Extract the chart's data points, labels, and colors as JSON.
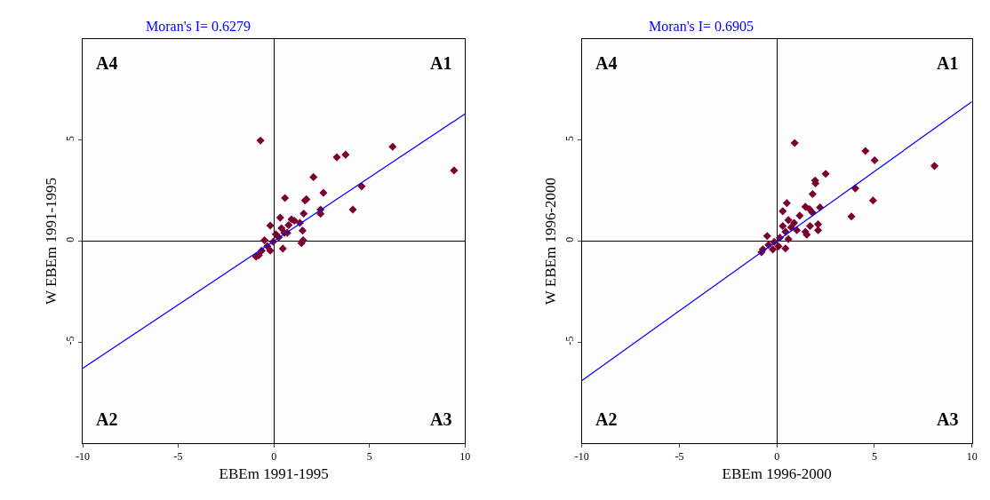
{
  "chart_data": [
    {
      "type": "scatter",
      "title": "Moran's I= 0.6279",
      "xlabel": "EBEm 1991-1995",
      "ylabel": "W EBEm 1991-1995",
      "annotations": [
        "A4",
        "A1",
        "A2",
        "A3"
      ],
      "xlim": [
        -10,
        10
      ],
      "ylim": [
        -10,
        10
      ],
      "xticks": [
        -10,
        -5,
        0,
        5,
        10
      ],
      "yticks": [
        -5,
        0,
        5
      ],
      "marker": "diamond",
      "series": [
        {
          "color": "#7b0033",
          "x": [
            -0.7,
            6.21,
            9.42,
            3.29,
            3.75,
            2.07,
            2.59,
            4.59,
            4.13,
            0.58,
            1.63,
            1.7,
            1.56,
            2.44,
            2.44,
            0.33,
            -0.19,
            1.5,
            1.44,
            1.53,
            0.92,
            1.07,
            1.36,
            0.7,
            -0.93,
            -0.64,
            -0.34,
            -0.04,
            0.25,
            0.55,
            0.47,
            -0.49,
            0.1,
            0.4,
            0.77,
            -0.19,
            -0.79
          ],
          "values": [
            4.98,
            4.67,
            3.5,
            4.15,
            4.28,
            3.17,
            2.39,
            2.71,
            1.56,
            2.13,
            2.01,
            2.07,
            1.36,
            1.56,
            1.35,
            1.16,
            0.77,
            0.52,
            -0.1,
            0.04,
            1.08,
            1.01,
            0.9,
            0.41,
            -0.77,
            -0.47,
            -0.25,
            -0.03,
            0.19,
            0.41,
            -0.37,
            0.04,
            0.34,
            0.64,
            0.79,
            -0.47,
            -0.7
          ]
        },
        {
          "type": "line",
          "color": "#0000ff",
          "marker": "none",
          "x": [
            -10,
            10
          ],
          "values": [
            -6.3,
            6.3
          ]
        }
      ]
    },
    {
      "type": "scatter",
      "title": "Moran's I= 0.6905",
      "xlabel": "EBEm 1996-2000",
      "ylabel": "W EBEm 1996-2000",
      "annotations": [
        "A4",
        "A1",
        "A2",
        "A3"
      ],
      "xlim": [
        -10,
        10
      ],
      "ylim": [
        -10,
        10
      ],
      "xticks": [
        -10,
        -5,
        0,
        5,
        10
      ],
      "yticks": [
        -5,
        0,
        5
      ],
      "marker": "diamond",
      "series": [
        {
          "color": "#7b0033",
          "x": [
            0.91,
            4.54,
            5.01,
            8.08,
            2.5,
            1.96,
            1.98,
            1.83,
            4.02,
            4.93,
            3.82,
            0.51,
            2.21,
            1.46,
            1.67,
            1.82,
            2.11,
            2.11,
            1.46,
            1.53,
            1.7,
            1.17,
            0.88,
            0.59,
            0.44,
            0.3,
            -0.72,
            -0.43,
            -0.14,
            0.15,
            0.44,
            0.73,
            -0.5,
            -0.79,
            -0.21,
            0.08,
            0.3,
            0.59,
            1.02
          ],
          "values": [
            4.86,
            4.46,
            4.0,
            3.72,
            3.33,
            3.0,
            2.86,
            2.33,
            2.61,
            2.01,
            1.22,
            1.88,
            1.67,
            1.7,
            1.58,
            1.41,
            0.83,
            0.54,
            0.46,
            0.32,
            0.75,
            1.26,
            0.9,
            1.04,
            -0.36,
            1.48,
            -0.41,
            -0.19,
            -0.04,
            0.17,
            0.46,
            0.68,
            0.25,
            -0.55,
            -0.41,
            -0.26,
            0.75,
            0.1,
            0.54
          ]
        },
        {
          "type": "line",
          "color": "#0000ff",
          "marker": "none",
          "x": [
            -10,
            10
          ],
          "values": [
            -6.9,
            6.9
          ]
        }
      ]
    }
  ]
}
